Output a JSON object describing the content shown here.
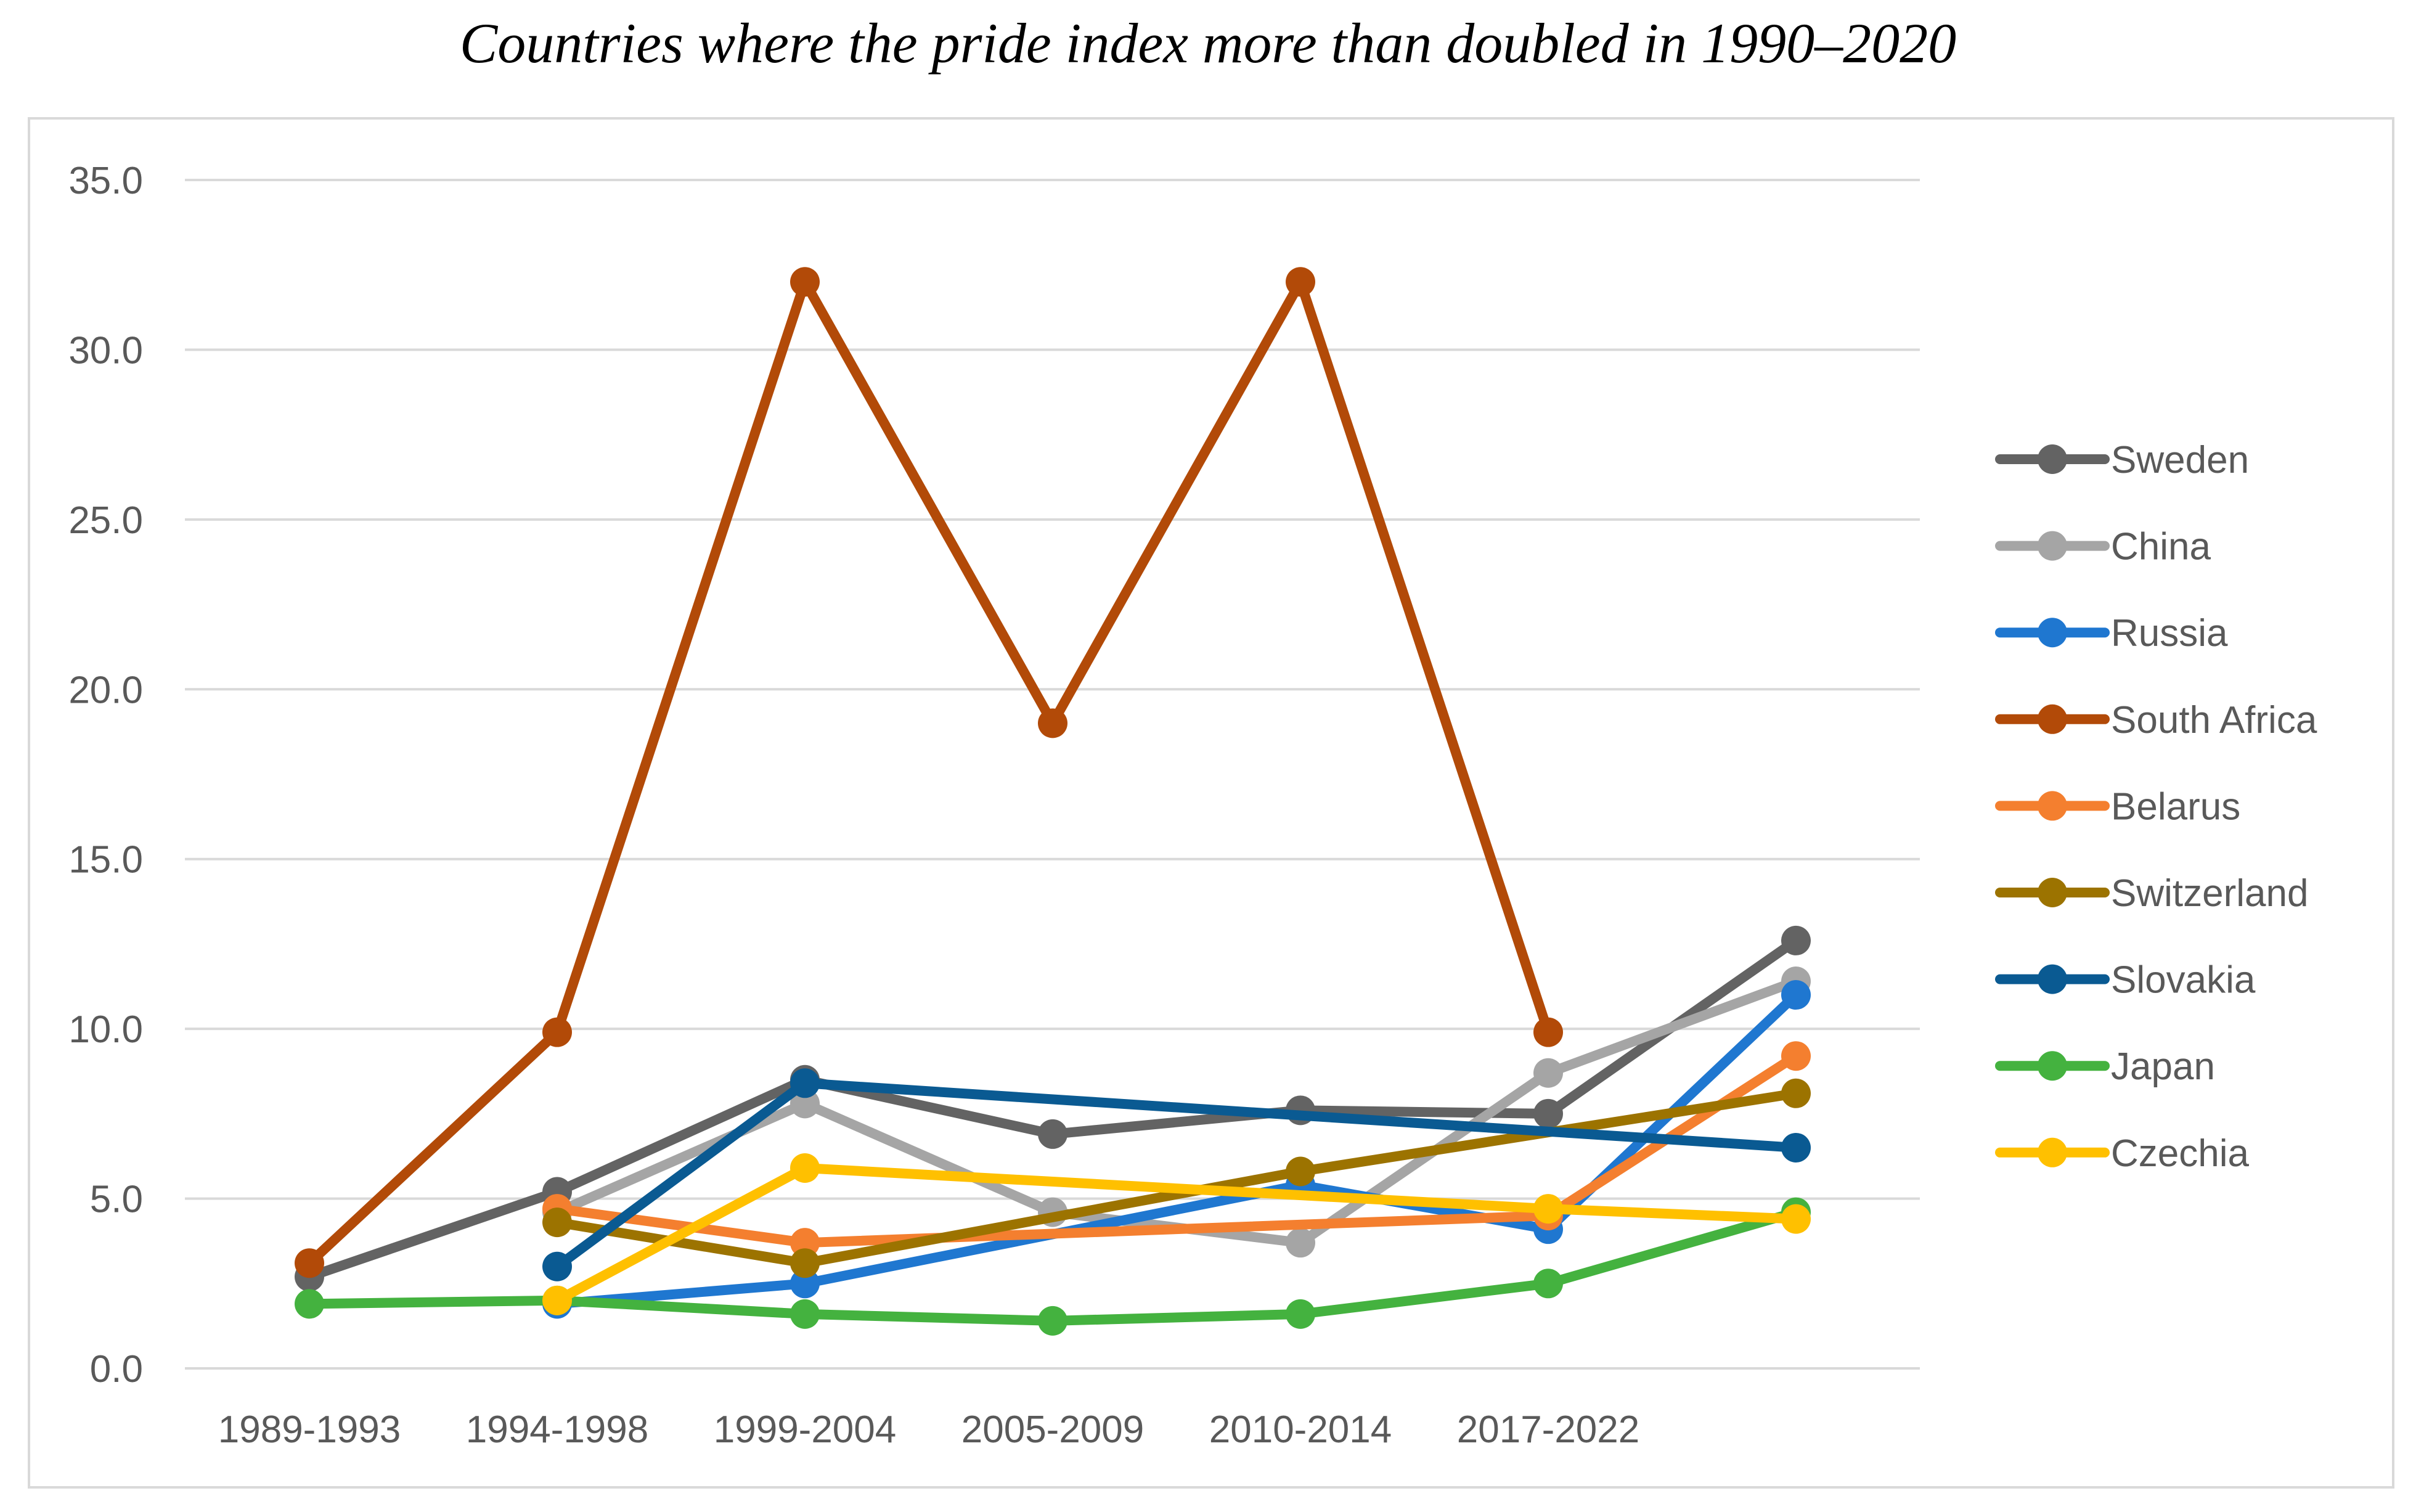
{
  "chart_data": {
    "type": "line",
    "title": "Countries where the pride index more than doubled in 1990–2020",
    "xlabel": "",
    "ylabel": "",
    "categories": [
      "1989-1993",
      "1994-1998",
      "1999-2004",
      "2005-2009",
      "2010-2014",
      "2017-2022",
      ""
    ],
    "y_ticks": [
      "0.0",
      "5.0",
      "10.0",
      "15.0",
      "20.0",
      "25.0",
      "30.0",
      "35.0"
    ],
    "ylim": [
      0,
      35
    ],
    "grid": true,
    "legend_position": "right",
    "series": [
      {
        "name": "Sweden",
        "color": "#636363",
        "values": [
          2.7,
          5.2,
          8.5,
          6.9,
          7.6,
          7.5,
          12.6
        ]
      },
      {
        "name": "China",
        "color": "#a5a5a5",
        "values": [
          null,
          4.6,
          7.8,
          4.6,
          3.7,
          8.7,
          11.4
        ]
      },
      {
        "name": "Russia",
        "color": "#1f77d0",
        "values": [
          null,
          1.9,
          2.5,
          null,
          5.4,
          4.1,
          11.0
        ]
      },
      {
        "name": "South Africa",
        "color": "#b24a08",
        "values": [
          3.1,
          9.9,
          32.0,
          19.0,
          32.0,
          9.9,
          null
        ]
      },
      {
        "name": "Belarus",
        "color": "#f47f2f",
        "values": [
          null,
          4.7,
          3.7,
          null,
          null,
          4.5,
          9.2
        ]
      },
      {
        "name": "Switzerland",
        "color": "#9c7300",
        "values": [
          null,
          4.3,
          3.1,
          null,
          5.8,
          null,
          8.1
        ]
      },
      {
        "name": "Slovakia",
        "color": "#0a5a92",
        "values": [
          null,
          3.0,
          8.4,
          null,
          null,
          null,
          6.5
        ]
      },
      {
        "name": "Japan",
        "color": "#44b23f",
        "values": [
          1.9,
          2.0,
          1.6,
          1.4,
          1.6,
          2.5,
          4.6
        ]
      },
      {
        "name": "Czechia",
        "color": "#ffc000",
        "values": [
          null,
          2.0,
          5.9,
          null,
          null,
          4.7,
          4.4
        ]
      }
    ]
  }
}
